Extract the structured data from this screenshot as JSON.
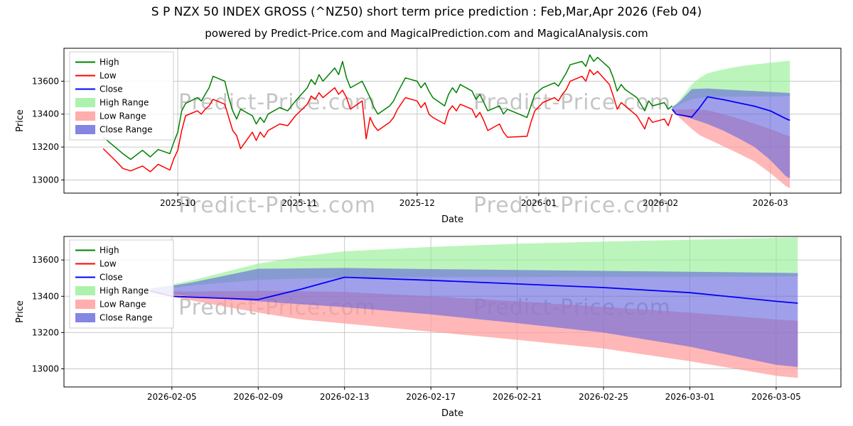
{
  "page": {
    "title": "S P NZX 50 INDEX GROSS (^NZ50) short term price prediction : Feb,Mar,Apr 2026 (Feb 04)",
    "subtitle": "powered by Predict-Price.com and MagicalPrediction.com and MagicalAnalysis.com",
    "watermark": "Predict-Price.com"
  },
  "colors": {
    "high_line": "#008000",
    "low_line": "#ff0000",
    "close_line": "#0000ff",
    "high_range_fill": "#90ee90",
    "low_range_fill": "#ff9999",
    "close_range_fill": "#6666dd",
    "grid": "#c8c8c8",
    "watermark": "#808080",
    "axis": "#000000"
  },
  "chart_data": [
    {
      "id": "top",
      "type": "line",
      "title": "price history and prediction",
      "xlabel": "Date",
      "ylabel": "Price",
      "grid": true,
      "legend_position": "upper left",
      "legend": [
        "High",
        "Low",
        "Close",
        "High Range",
        "Low Range",
        "Close Range"
      ],
      "x_domain": [
        "2025-09-02",
        "2026-03-19"
      ],
      "x_ticks": [
        {
          "date": "2025-10-01",
          "label": "2025-10"
        },
        {
          "date": "2025-11-01",
          "label": "2025-11"
        },
        {
          "date": "2025-12-01",
          "label": "2025-12"
        },
        {
          "date": "2026-01-01",
          "label": "2026-01"
        },
        {
          "date": "2026-02-01",
          "label": "2026-02"
        },
        {
          "date": "2026-03-01",
          "label": "2026-03"
        }
      ],
      "y_domain": [
        12920,
        13800
      ],
      "y_ticks": [
        13000,
        13200,
        13400,
        13600
      ],
      "history": {
        "dates": [
          "2025-09-12",
          "2025-09-15",
          "2025-09-17",
          "2025-09-19",
          "2025-09-22",
          "2025-09-24",
          "2025-09-26",
          "2025-09-29",
          "2025-09-30",
          "2025-10-01",
          "2025-10-02",
          "2025-10-03",
          "2025-10-06",
          "2025-10-07",
          "2025-10-08",
          "2025-10-09",
          "2025-10-10",
          "2025-10-13",
          "2025-10-14",
          "2025-10-15",
          "2025-10-16",
          "2025-10-17",
          "2025-10-20",
          "2025-10-21",
          "2025-10-22",
          "2025-10-23",
          "2025-10-24",
          "2025-10-27",
          "2025-10-29",
          "2025-10-31",
          "2025-11-03",
          "2025-11-04",
          "2025-11-05",
          "2025-11-06",
          "2025-11-07",
          "2025-11-10",
          "2025-11-11",
          "2025-11-12",
          "2025-11-13",
          "2025-11-14",
          "2025-11-17",
          "2025-11-18",
          "2025-11-19",
          "2025-11-20",
          "2025-11-21",
          "2025-11-24",
          "2025-11-25",
          "2025-11-26",
          "2025-11-28",
          "2025-12-01",
          "2025-12-02",
          "2025-12-03",
          "2025-12-04",
          "2025-12-05",
          "2025-12-08",
          "2025-12-09",
          "2025-12-10",
          "2025-12-11",
          "2025-12-12",
          "2025-12-15",
          "2025-12-16",
          "2025-12-17",
          "2025-12-18",
          "2025-12-19",
          "2025-12-22",
          "2025-12-23",
          "2025-12-24",
          "2025-12-29",
          "2025-12-30",
          "2025-12-31",
          "2026-01-02",
          "2026-01-05",
          "2026-01-06",
          "2026-01-07",
          "2026-01-08",
          "2026-01-09",
          "2026-01-12",
          "2026-01-13",
          "2026-01-14",
          "2026-01-15",
          "2026-01-16",
          "2026-01-19",
          "2026-01-20",
          "2026-01-21",
          "2026-01-22",
          "2026-01-23",
          "2026-01-26",
          "2026-01-27",
          "2026-01-28",
          "2026-01-29",
          "2026-01-30",
          "2026-02-02",
          "2026-02-03",
          "2026-02-04"
        ],
        "high": [
          13260,
          13200,
          13160,
          13125,
          13180,
          13140,
          13185,
          13160,
          13230,
          13290,
          13420,
          13465,
          13500,
          13480,
          13520,
          13560,
          13630,
          13600,
          13500,
          13420,
          13370,
          13430,
          13390,
          13340,
          13380,
          13350,
          13400,
          13440,
          13420,
          13480,
          13560,
          13610,
          13580,
          13640,
          13600,
          13680,
          13640,
          13720,
          13620,
          13560,
          13600,
          13550,
          13500,
          13440,
          13400,
          13450,
          13480,
          13530,
          13620,
          13600,
          13560,
          13590,
          13540,
          13500,
          13450,
          13520,
          13560,
          13530,
          13580,
          13540,
          13490,
          13520,
          13470,
          13420,
          13450,
          13400,
          13430,
          13380,
          13450,
          13520,
          13560,
          13590,
          13570,
          13610,
          13650,
          13700,
          13720,
          13690,
          13760,
          13720,
          13745,
          13680,
          13620,
          13540,
          13580,
          13550,
          13500,
          13460,
          13420,
          13480,
          13450,
          13470,
          13430,
          13450
        ],
        "low": [
          13190,
          13120,
          13070,
          13055,
          13085,
          13050,
          13095,
          13060,
          13130,
          13180,
          13300,
          13390,
          13420,
          13400,
          13430,
          13450,
          13490,
          13460,
          13380,
          13300,
          13270,
          13190,
          13290,
          13240,
          13290,
          13260,
          13300,
          13340,
          13330,
          13390,
          13460,
          13510,
          13490,
          13530,
          13500,
          13560,
          13520,
          13545,
          13500,
          13430,
          13480,
          13250,
          13380,
          13330,
          13300,
          13350,
          13380,
          13430,
          13500,
          13480,
          13440,
          13470,
          13400,
          13380,
          13340,
          13420,
          13450,
          13420,
          13460,
          13430,
          13380,
          13410,
          13360,
          13300,
          13340,
          13290,
          13260,
          13265,
          13350,
          13420,
          13470,
          13500,
          13480,
          13520,
          13550,
          13600,
          13630,
          13600,
          13670,
          13640,
          13660,
          13580,
          13510,
          13430,
          13470,
          13450,
          13390,
          13350,
          13310,
          13380,
          13350,
          13370,
          13330,
          13400
        ]
      },
      "prediction": {
        "dates": [
          "2026-02-04",
          "2026-02-05",
          "2026-02-06",
          "2026-02-09",
          "2026-02-11",
          "2026-02-13",
          "2026-02-17",
          "2026-02-21",
          "2026-02-25",
          "2026-03-01",
          "2026-03-05",
          "2026-03-06"
        ],
        "close": [
          13430,
          13400,
          13395,
          13382,
          13440,
          13505,
          13488,
          13468,
          13448,
          13420,
          13372,
          13362
        ],
        "high_range_upper": [
          13445,
          13465,
          13490,
          13580,
          13620,
          13648,
          13672,
          13690,
          13702,
          13712,
          13722,
          13725
        ],
        "high_range_lower": [
          13430,
          13445,
          13460,
          13490,
          13498,
          13503,
          13505,
          13506,
          13507,
          13508,
          13509,
          13510
        ],
        "low_range_upper": [
          13428,
          13427,
          13426,
          13430,
          13428,
          13424,
          13400,
          13372,
          13342,
          13310,
          13272,
          13265
        ],
        "low_range_lower": [
          13418,
          13398,
          13375,
          13310,
          13272,
          13250,
          13205,
          13160,
          13112,
          13042,
          12962,
          12950
        ],
        "close_range_upper": [
          13442,
          13458,
          13478,
          13552,
          13554,
          13556,
          13550,
          13545,
          13540,
          13535,
          13530,
          13528
        ],
        "close_range_lower": [
          13424,
          13410,
          13398,
          13372,
          13356,
          13340,
          13300,
          13252,
          13200,
          13122,
          13022,
          13010
        ]
      }
    },
    {
      "id": "bottom",
      "type": "line",
      "title": "prediction zoom",
      "xlabel": "Date",
      "ylabel": "Price",
      "grid": true,
      "legend_position": "upper left",
      "legend": [
        "High",
        "Low",
        "Close",
        "High Range",
        "Low Range",
        "Close Range"
      ],
      "x_domain": [
        "2026-01-31",
        "2026-03-08"
      ],
      "x_ticks": [
        {
          "date": "2026-02-05",
          "label": "2026-02-05"
        },
        {
          "date": "2026-02-09",
          "label": "2026-02-09"
        },
        {
          "date": "2026-02-13",
          "label": "2026-02-13"
        },
        {
          "date": "2026-02-17",
          "label": "2026-02-17"
        },
        {
          "date": "2026-02-21",
          "label": "2026-02-21"
        },
        {
          "date": "2026-02-25",
          "label": "2026-02-25"
        },
        {
          "date": "2026-03-01",
          "label": "2026-03-01"
        },
        {
          "date": "2026-03-05",
          "label": "2026-03-05"
        }
      ],
      "y_domain": [
        12900,
        13730
      ],
      "y_ticks": [
        13000,
        13200,
        13400,
        13600
      ],
      "prediction": {
        "dates": [
          "2026-02-04",
          "2026-02-05",
          "2026-02-06",
          "2026-02-09",
          "2026-02-11",
          "2026-02-13",
          "2026-02-17",
          "2026-02-21",
          "2026-02-25",
          "2026-03-01",
          "2026-03-05",
          "2026-03-06"
        ],
        "close": [
          13430,
          13400,
          13395,
          13382,
          13440,
          13505,
          13488,
          13468,
          13448,
          13420,
          13372,
          13362
        ],
        "high_range_upper": [
          13445,
          13465,
          13490,
          13580,
          13620,
          13648,
          13672,
          13690,
          13702,
          13712,
          13722,
          13725
        ],
        "high_range_lower": [
          13430,
          13445,
          13460,
          13490,
          13498,
          13503,
          13505,
          13506,
          13507,
          13508,
          13509,
          13510
        ],
        "low_range_upper": [
          13428,
          13427,
          13426,
          13430,
          13428,
          13424,
          13400,
          13372,
          13342,
          13310,
          13272,
          13265
        ],
        "low_range_lower": [
          13418,
          13398,
          13375,
          13310,
          13272,
          13250,
          13205,
          13160,
          13112,
          13042,
          12962,
          12950
        ],
        "close_range_upper": [
          13442,
          13458,
          13478,
          13552,
          13554,
          13556,
          13550,
          13545,
          13540,
          13535,
          13530,
          13528
        ],
        "close_range_lower": [
          13424,
          13410,
          13398,
          13372,
          13356,
          13340,
          13300,
          13252,
          13200,
          13122,
          13022,
          13010
        ]
      }
    }
  ]
}
